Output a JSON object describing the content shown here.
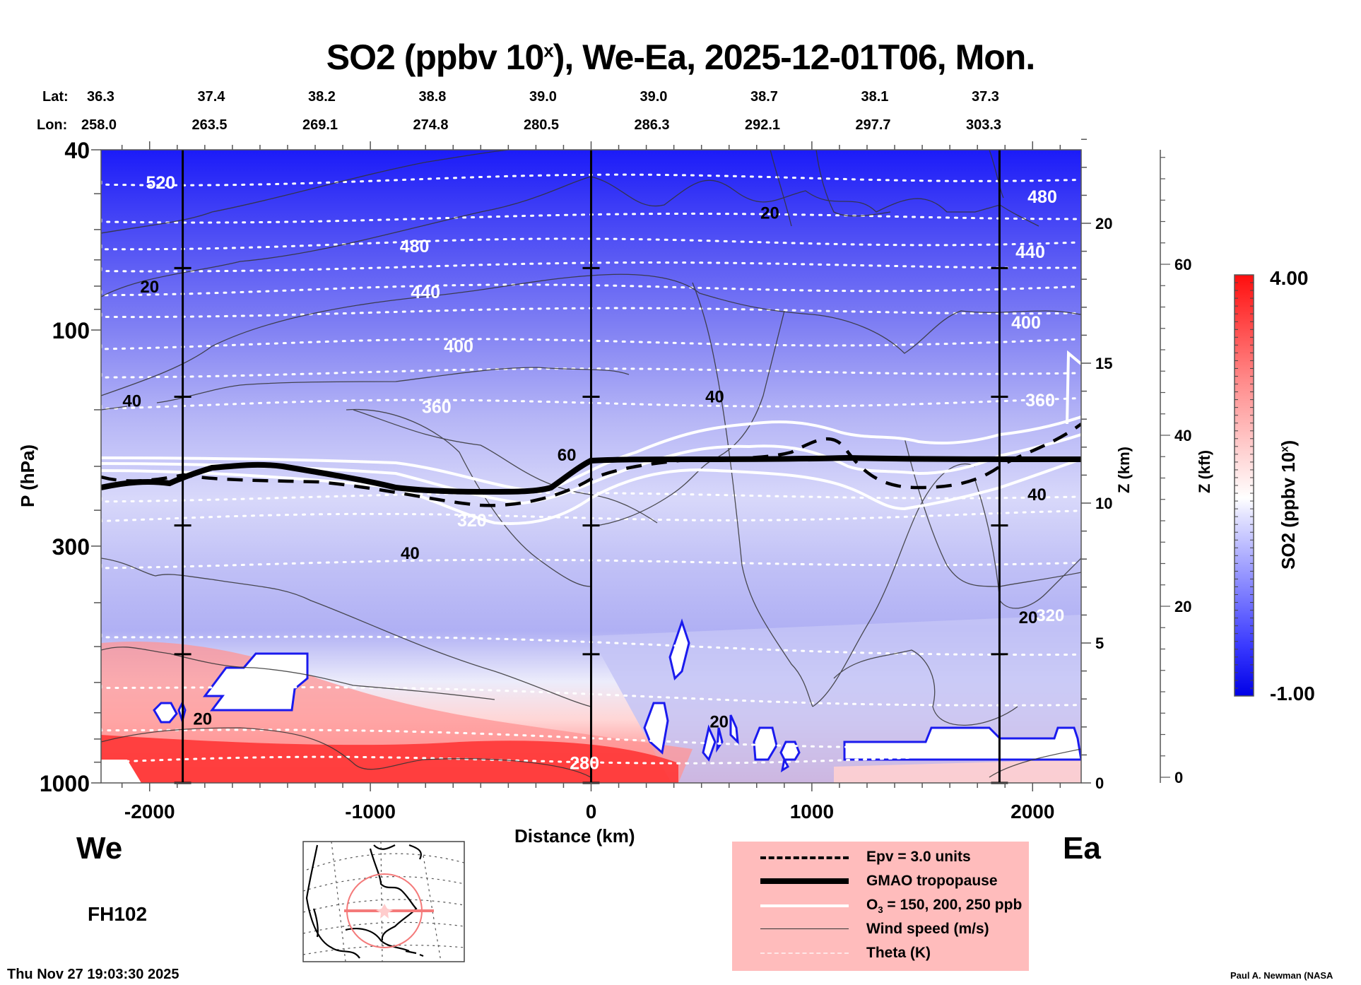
{
  "chart_data": {
    "type": "heatmap",
    "title": "SO2 (ppbv 10",
    "title_sup": "x",
    "title_rest": "), We-Ea, 2025-12-01T06, Mon.",
    "xlabel": "Distance (km)",
    "ylabel": "P (hPa)",
    "y2label": "Z (km)",
    "y3label": "Z (kft)",
    "colorbar_label": "SO2 (ppbv 10",
    "colorbar_label_sup": "x",
    "colorbar_label_end": ")",
    "xlim": [
      -2220,
      2220
    ],
    "ylim_hpa": [
      1000,
      40
    ],
    "x_ticks": [
      {
        "value": -2000,
        "label": "-2000"
      },
      {
        "value": -1000,
        "label": "-1000"
      },
      {
        "value": 0,
        "label": "0"
      },
      {
        "value": 1000,
        "label": "1000"
      },
      {
        "value": 2000,
        "label": "2000"
      }
    ],
    "y_ticks_hpa": [
      {
        "value": 40,
        "label": "40"
      },
      {
        "value": 100,
        "label": "100"
      },
      {
        "value": 300,
        "label": "300"
      },
      {
        "value": 1000,
        "label": "1000"
      }
    ],
    "z_km_ticks": [
      {
        "value": 0,
        "label": "0"
      },
      {
        "value": 5,
        "label": "5"
      },
      {
        "value": 10,
        "label": "10"
      },
      {
        "value": 15,
        "label": "15"
      },
      {
        "value": 20,
        "label": "20"
      }
    ],
    "z_kft_ticks": [
      {
        "value": 0,
        "label": "0"
      },
      {
        "value": 20,
        "label": "20"
      },
      {
        "value": 40,
        "label": "40"
      },
      {
        "value": 60,
        "label": "60"
      }
    ],
    "colorbar": {
      "min": -1.0,
      "max": 4.0,
      "min_label": "-1.00",
      "max_label": "4.00",
      "low_color": "#0000ff",
      "mid_color": "#ffffff",
      "high_color": "#ff0000"
    },
    "lat_label": "Lat:",
    "lon_label": "Lon:",
    "lats": [
      "36.3",
      "37.4",
      "38.2",
      "38.8",
      "39.0",
      "39.0",
      "38.7",
      "38.1",
      "37.3"
    ],
    "lons": [
      "258.0",
      "263.5",
      "269.1",
      "274.8",
      "280.5",
      "286.3",
      "292.1",
      "297.7",
      "303.3"
    ],
    "vertical_markers_km": [
      -1850,
      0,
      1850
    ],
    "theta_contours": [
      {
        "label": "520",
        "p_hpa": 47,
        "label_x_km": -1950
      },
      {
        "label": "480",
        "p_hpa": 65,
        "label_x_km": -800
      },
      {
        "label": "440",
        "p_hpa": 82,
        "label_x_km": -750
      },
      {
        "label": "400",
        "p_hpa": 108,
        "label_x_km": -600
      },
      {
        "label": "360",
        "p_hpa": 147,
        "label_x_km": -700
      },
      {
        "label": "320",
        "p_hpa": 262,
        "label_x_km": -540
      },
      {
        "label": "280",
        "p_hpa": 900,
        "label_x_km": -30
      }
    ],
    "wind_labels": [
      {
        "label": "20",
        "x_km": -2000,
        "p_hpa": 80
      },
      {
        "label": "40",
        "x_km": -2080,
        "p_hpa": 143
      },
      {
        "label": "60",
        "x_km": -110,
        "p_hpa": 188
      },
      {
        "label": "40",
        "x_km": 560,
        "p_hpa": 140
      },
      {
        "label": "20",
        "x_km": 810,
        "p_hpa": 55
      },
      {
        "label": "40",
        "x_km": -820,
        "p_hpa": 310
      },
      {
        "label": "40",
        "x_km": 2020,
        "p_hpa": 230
      },
      {
        "label": "20",
        "x_km": -1760,
        "p_hpa": 720
      },
      {
        "label": "20",
        "x_km": 580,
        "p_hpa": 730
      },
      {
        "label": "20",
        "x_km": 1980,
        "p_hpa": 430
      },
      {
        "label": "320",
        "x_km": 2080,
        "p_hpa": 425
      }
    ],
    "tropopause_p_hpa_approx": 200,
    "legend": [
      {
        "style": "dashed",
        "label": "Epv = 3.0 units"
      },
      {
        "style": "thick",
        "label": "GMAO tropopause"
      },
      {
        "style": "white",
        "label": "O3 = 150, 200, 250 ppb"
      },
      {
        "style": "thin",
        "label": "Wind speed (m/s)"
      },
      {
        "style": "dotted",
        "label": "Theta (K)"
      }
    ],
    "legend_location": "bottom-center-right"
  },
  "footer": {
    "west": "We",
    "east": "Ea",
    "forecast_hour": "FH102",
    "timestamp": "Thu Nov 27 19:03:30 2025",
    "credit": "Paul A. Newman (NASA"
  },
  "legend_text": {
    "epv": "Epv = 3.0 units",
    "trop": "GMAO tropopause",
    "o3_a": "O",
    "o3_sub": "3",
    "o3_b": " = 150, 200, 250 ppb",
    "wind": "Wind speed (m/s)",
    "theta": "Theta (K)"
  }
}
